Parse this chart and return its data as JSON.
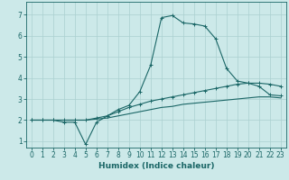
{
  "xlabel": "Humidex (Indice chaleur)",
  "background_color": "#cce9e9",
  "grid_color": "#aad0d0",
  "line_color": "#1a6666",
  "xlim": [
    -0.5,
    23.5
  ],
  "ylim": [
    0.7,
    7.6
  ],
  "xticks": [
    0,
    1,
    2,
    3,
    4,
    5,
    6,
    7,
    8,
    9,
    10,
    11,
    12,
    13,
    14,
    15,
    16,
    17,
    18,
    19,
    20,
    21,
    22,
    23
  ],
  "yticks": [
    1,
    2,
    3,
    4,
    5,
    6,
    7
  ],
  "series1_x": [
    0,
    1,
    2,
    3,
    4,
    5,
    6,
    7,
    8,
    9,
    10,
    11,
    12,
    13,
    14,
    15,
    16,
    17,
    18,
    19,
    20,
    21,
    22,
    23
  ],
  "series1_y": [
    2.0,
    2.0,
    2.0,
    1.9,
    1.9,
    0.85,
    1.9,
    2.2,
    2.5,
    2.7,
    3.35,
    4.6,
    6.85,
    6.95,
    6.6,
    6.55,
    6.45,
    5.85,
    4.45,
    3.85,
    3.75,
    3.6,
    3.2,
    3.15
  ],
  "series2_x": [
    0,
    1,
    2,
    3,
    4,
    5,
    6,
    7,
    8,
    9,
    10,
    11,
    12,
    13,
    14,
    15,
    16,
    17,
    18,
    19,
    20,
    21,
    22,
    23
  ],
  "series2_y": [
    2.0,
    2.0,
    2.0,
    2.0,
    2.0,
    2.0,
    2.1,
    2.2,
    2.4,
    2.6,
    2.75,
    2.9,
    3.0,
    3.1,
    3.2,
    3.3,
    3.4,
    3.5,
    3.6,
    3.7,
    3.75,
    3.75,
    3.7,
    3.6
  ],
  "series3_x": [
    0,
    1,
    2,
    3,
    4,
    5,
    6,
    7,
    8,
    9,
    10,
    11,
    12,
    13,
    14,
    15,
    16,
    17,
    18,
    19,
    20,
    21,
    22,
    23
  ],
  "series3_y": [
    2.0,
    2.0,
    2.0,
    2.0,
    2.0,
    2.0,
    2.05,
    2.1,
    2.2,
    2.3,
    2.4,
    2.5,
    2.6,
    2.65,
    2.75,
    2.8,
    2.85,
    2.9,
    2.95,
    3.0,
    3.05,
    3.1,
    3.1,
    3.05
  ],
  "tick_fontsize": 5.5,
  "xlabel_fontsize": 6.5,
  "marker_size": 2.5,
  "line_width": 0.8
}
